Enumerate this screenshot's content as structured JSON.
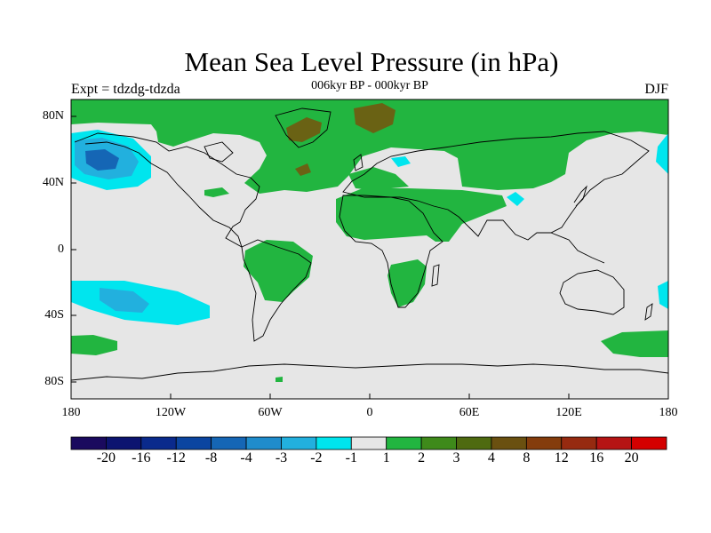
{
  "title": "Mean Sea Level Pressure (in hPa)",
  "subtitle": "006kyr BP - 000kyr BP",
  "experiment": "Expt = tdzdg-tdzda",
  "season": "DJF",
  "y_ticks": [
    "80N",
    "40N",
    "0",
    "40S",
    "80S"
  ],
  "x_ticks": [
    "180",
    "120W",
    "60W",
    "0",
    "60E",
    "120E",
    "180"
  ],
  "colorbar": {
    "colors": [
      "#1a0a5e",
      "#0c1470",
      "#0a2a8c",
      "#0b45a0",
      "#1566b5",
      "#1f8ccc",
      "#22b0de",
      "#00e5ee",
      "#e6e6e6",
      "#22b540",
      "#3e8a1a",
      "#4e6a10",
      "#6a5010",
      "#843c0c",
      "#962a10",
      "#b51414",
      "#d40000"
    ],
    "labels": [
      "-20",
      "-16",
      "-12",
      "-8",
      "-4",
      "-3",
      "-2",
      "-1",
      "1",
      "2",
      "3",
      "4",
      "8",
      "12",
      "16",
      "20"
    ]
  },
  "colors": {
    "neutral": "#e6e6e6",
    "green": "#22b540",
    "olive": "#6a6214",
    "cyan": "#00e5ee",
    "mid_blue": "#22b0de",
    "dark_blue": "#1566b5"
  }
}
